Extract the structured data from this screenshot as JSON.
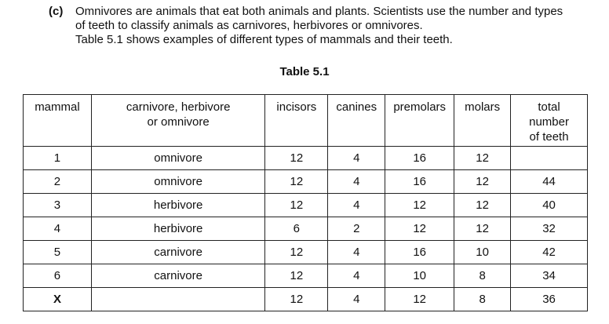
{
  "question": {
    "label": "(c)",
    "lines": [
      "Omnivores are animals that eat both animals and plants. Scientists use the number and types",
      "of teeth to classify animals as carnivores, herbivores or omnivores.",
      "Table 5.1 shows examples of different types of mammals and their teeth."
    ]
  },
  "table": {
    "title": "Table 5.1",
    "headers": {
      "mammal": "mammal",
      "type_line1": "carnivore, herbivore",
      "type_line2": "or omnivore",
      "incisors": "incisors",
      "canines": "canines",
      "premolars": "premolars",
      "molars": "molars",
      "total_line1": "total",
      "total_line2": "number",
      "total_line3": "of teeth"
    },
    "rows": [
      {
        "mammal": "1",
        "type": "omnivore",
        "incisors": "12",
        "canines": "4",
        "premolars": "16",
        "molars": "12",
        "total": ""
      },
      {
        "mammal": "2",
        "type": "omnivore",
        "incisors": "12",
        "canines": "4",
        "premolars": "16",
        "molars": "12",
        "total": "44"
      },
      {
        "mammal": "3",
        "type": "herbivore",
        "incisors": "12",
        "canines": "4",
        "premolars": "12",
        "molars": "12",
        "total": "40"
      },
      {
        "mammal": "4",
        "type": "herbivore",
        "incisors": "6",
        "canines": "2",
        "premolars": "12",
        "molars": "12",
        "total": "32"
      },
      {
        "mammal": "5",
        "type": "carnivore",
        "incisors": "12",
        "canines": "4",
        "premolars": "16",
        "molars": "10",
        "total": "42"
      },
      {
        "mammal": "6",
        "type": "carnivore",
        "incisors": "12",
        "canines": "4",
        "premolars": "10",
        "molars": "8",
        "total": "34"
      },
      {
        "mammal": "X",
        "type": "",
        "incisors": "12",
        "canines": "4",
        "premolars": "12",
        "molars": "8",
        "total": "36"
      }
    ]
  }
}
